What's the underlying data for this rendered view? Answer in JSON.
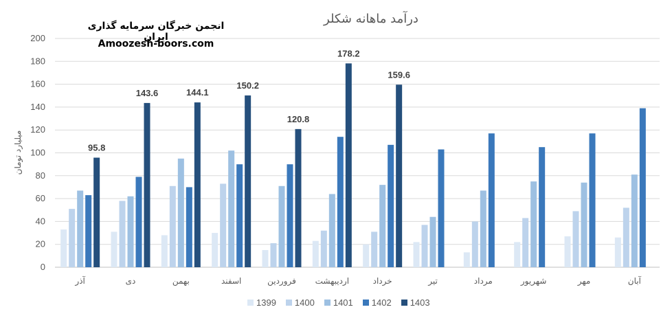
{
  "header": {
    "brand_line1": "انجمن خبرگان سرمایه گذاری ایران",
    "brand_line2": "Amoozesh-boors.com"
  },
  "colors": {
    "1399": "#dce8f5",
    "1400": "#bdd3ec",
    "1401": "#9dc0e2",
    "1402": "#3a78bb",
    "1403": "#254f7c",
    "axis_text": "#595959",
    "grid": "#d9d9d9"
  },
  "chart_data": {
    "type": "bar",
    "title": "درآمد ماهانه شکلر",
    "ylabel": "میلیارد تومان",
    "xlabel": "",
    "ylim": [
      0,
      200
    ],
    "yticks": [
      0,
      20,
      40,
      60,
      80,
      100,
      120,
      140,
      160,
      180,
      200
    ],
    "grid": true,
    "legend_position": "bottom",
    "categories": [
      "آذر",
      "دی",
      "بهمن",
      "اسفند",
      "فروردین",
      "اردیبهشت",
      "خرداد",
      "تیر",
      "مرداد",
      "شهریور",
      "مهر",
      "آبان"
    ],
    "series": [
      {
        "name": "1399",
        "values": [
          33,
          31,
          28,
          30,
          15,
          23,
          20,
          22,
          13,
          22,
          27,
          26
        ]
      },
      {
        "name": "1400",
        "values": [
          51,
          58,
          71,
          73,
          21,
          32,
          31,
          37,
          40,
          43,
          49,
          52
        ]
      },
      {
        "name": "1401",
        "values": [
          67,
          62,
          95,
          102,
          71,
          64,
          72,
          44,
          67,
          75,
          74,
          81
        ]
      },
      {
        "name": "1402",
        "values": [
          63,
          79,
          70,
          90,
          90,
          114,
          107,
          103,
          117,
          105,
          117,
          139
        ]
      },
      {
        "name": "1403",
        "values": [
          95.8,
          143.6,
          144.1,
          150.2,
          120.8,
          178.2,
          159.6,
          null,
          null,
          null,
          null,
          null
        ]
      }
    ],
    "data_labels": {
      "series": "1403",
      "labels": [
        "95.8",
        "143.6",
        "144.1",
        "150.2",
        "120.8",
        "178.2",
        "159.6"
      ]
    }
  }
}
